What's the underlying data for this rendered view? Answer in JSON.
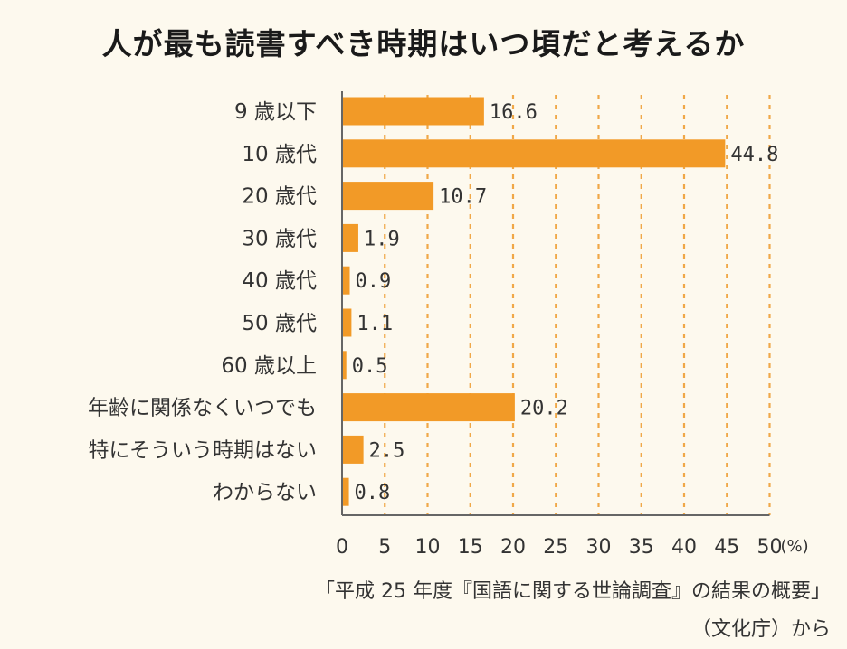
{
  "chart_data": {
    "type": "bar",
    "orientation": "horizontal",
    "title": "人が最も読書すべき時期はいつ頃だと考えるか",
    "categories": [
      "9 歳以下",
      "10 歳代",
      "20 歳代",
      "30 歳代",
      "40 歳代",
      "50 歳代",
      "60 歳以上",
      "年齢に関係なくいつでも",
      "特にそういう時期はない",
      "わからない"
    ],
    "values": [
      16.6,
      44.8,
      10.7,
      1.9,
      0.9,
      1.1,
      0.5,
      20.2,
      2.5,
      0.8
    ],
    "value_labels": [
      "16.6",
      "44.8",
      "10.7",
      "1.9",
      "0.9",
      "1.1",
      "0.5",
      "20.2",
      "2.5",
      "0.8"
    ],
    "xlim": [
      0,
      50
    ],
    "x_ticks": [
      "0",
      "5",
      "10",
      "15",
      "20",
      "25",
      "30",
      "35",
      "40",
      "45",
      "50"
    ],
    "x_unit": "(%)",
    "grid": "vertical dashed",
    "bar_color": "#f29a27",
    "grid_color": "#f0a848"
  },
  "source": {
    "line1": "「平成 25 年度『国語に関する世論調査』の結果の概要」",
    "line2": "（文化庁）から"
  }
}
